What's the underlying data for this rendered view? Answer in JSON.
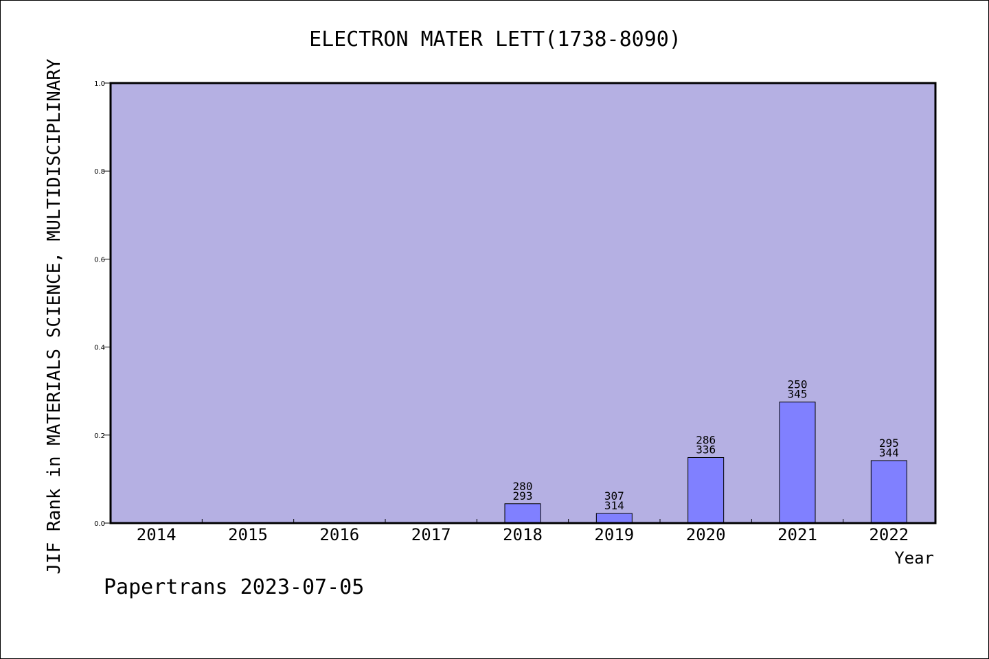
{
  "chart_data": {
    "type": "bar",
    "title": "ELECTRON MATER LETT(1738-8090)",
    "ylabel": "JIF Rank in MATERIALS SCIENCE, MULTIDISCIPLINARY",
    "xlabel": "Year",
    "categories": [
      "2014",
      "2015",
      "2016",
      "2017",
      "2018",
      "2019",
      "2020",
      "2021",
      "2022"
    ],
    "values": [
      null,
      null,
      null,
      null,
      0.044,
      0.022,
      0.149,
      0.275,
      0.142
    ],
    "rank_labels": [
      null,
      null,
      null,
      null,
      {
        "rank": "280",
        "total": "293"
      },
      {
        "rank": "307",
        "total": "314"
      },
      {
        "rank": "286",
        "total": "336"
      },
      {
        "rank": "250",
        "total": "345"
      },
      {
        "rank": "295",
        "total": "344"
      }
    ],
    "ylim": [
      0,
      1.0
    ],
    "yticks": [
      "0.0",
      "0.2",
      "0.4",
      "0.6",
      "0.8",
      "1.0"
    ],
    "grid": false,
    "colors": {
      "plot_background": "#b5b0e3",
      "bar_fill": "#8080ff",
      "bar_stroke": "#000000"
    }
  },
  "footer": {
    "credit": "Papertrans 2023-07-05"
  }
}
